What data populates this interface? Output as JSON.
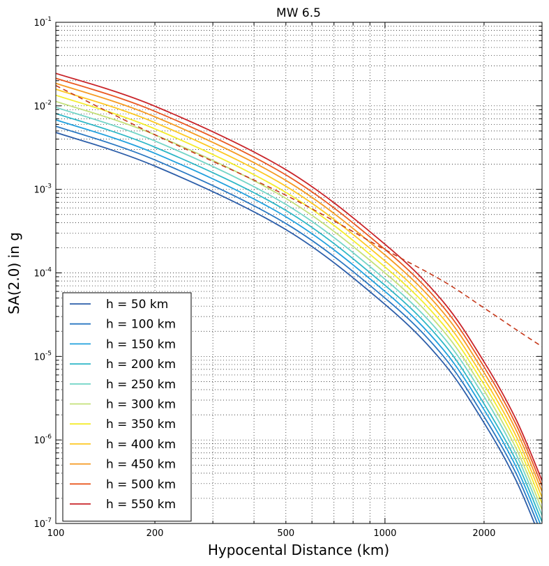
{
  "chart_data": {
    "type": "line",
    "title": "MW 6.5",
    "xlabel": "Hypocental Distance (km)",
    "ylabel": "SA(2.0) in g",
    "xscale": "log",
    "yscale": "log",
    "xlim": [
      100,
      3000
    ],
    "ylim": [
      1e-07,
      0.1
    ],
    "grid": true,
    "legend_position": "lower-left",
    "x_tick_labels": [
      {
        "value": 100,
        "label": "100"
      },
      {
        "value": 200,
        "label": "200"
      },
      {
        "value": 500,
        "label": "500"
      },
      {
        "value": 1000,
        "label": "1000"
      },
      {
        "value": 2000,
        "label": "2000"
      }
    ],
    "y_tick_labels": [
      {
        "value": 1e-07,
        "base": "10",
        "exp": "-7"
      },
      {
        "value": 1e-06,
        "base": "10",
        "exp": "-6"
      },
      {
        "value": 1e-05,
        "base": "10",
        "exp": "-5"
      },
      {
        "value": 0.0001,
        "base": "10",
        "exp": "-4"
      },
      {
        "value": 0.001,
        "base": "10",
        "exp": "-3"
      },
      {
        "value": 0.01,
        "base": "10",
        "exp": "-2"
      },
      {
        "value": 0.1,
        "base": "10",
        "exp": "-1"
      }
    ],
    "x": [
      100,
      200,
      500,
      1000,
      1500,
      2000,
      2500,
      3000
    ],
    "series": [
      {
        "name": "h = 50 km",
        "color": "#2c5ea9",
        "values": [
          0.0048,
          0.0019,
          0.00033,
          4.2e-05,
          8.5e-06,
          1.6e-06,
          3.3e-07,
          6e-08
        ]
      },
      {
        "name": "h = 100 km",
        "color": "#2a78c2",
        "values": [
          0.0057,
          0.00225,
          0.00039,
          5e-05,
          1.02e-05,
          1.9e-06,
          4e-07,
          7.3e-08
        ]
      },
      {
        "name": "h = 150 km",
        "color": "#22a1de",
        "values": [
          0.0068,
          0.0027,
          0.00047,
          6e-05,
          1.22e-05,
          2.3e-06,
          4.8e-07,
          8.8e-08
        ]
      },
      {
        "name": "h = 200 km",
        "color": "#2eb7c7",
        "values": [
          0.0081,
          0.0032,
          0.00056,
          7.1e-05,
          1.46e-05,
          2.7e-06,
          5.7e-07,
          1.05e-07
        ]
      },
      {
        "name": "h = 250 km",
        "color": "#74d5c7",
        "values": [
          0.0096,
          0.0038,
          0.00066,
          8.4e-05,
          1.73e-05,
          3.3e-06,
          6.8e-07,
          1.25e-07
        ]
      },
      {
        "name": "h = 300 km",
        "color": "#c4e07a",
        "values": [
          0.0113,
          0.0045,
          0.00078,
          0.0001,
          2.05e-05,
          3.9e-06,
          8e-07,
          1.47e-07
        ]
      },
      {
        "name": "h = 350 km",
        "color": "#f4ec2e",
        "values": [
          0.0134,
          0.0053,
          0.00092,
          0.000118,
          2.43e-05,
          4.6e-06,
          9.5e-07,
          1.74e-07
        ]
      },
      {
        "name": "h = 400 km",
        "color": "#fec824",
        "values": [
          0.0158,
          0.0063,
          0.00109,
          0.000139,
          2.87e-05,
          5.4e-06,
          1.12e-06,
          2.06e-07
        ]
      },
      {
        "name": "h = 450 km",
        "color": "#f69a22",
        "values": [
          0.0186,
          0.0074,
          0.00128,
          0.000164,
          3.39e-05,
          6.4e-06,
          1.32e-06,
          2.43e-07
        ]
      },
      {
        "name": "h = 500 km",
        "color": "#ea5a22",
        "values": [
          0.0214,
          0.0086,
          0.00149,
          0.000191,
          3.95e-05,
          7.5e-06,
          1.54e-06,
          2.83e-07
        ]
      },
      {
        "name": "h = 550 km",
        "color": "#c9252a",
        "values": [
          0.0245,
          0.0099,
          0.00172,
          0.00022,
          4.55e-05,
          8.6e-06,
          1.77e-06,
          3.26e-07
        ]
      }
    ],
    "reference": {
      "style": "dashed",
      "color": "#c6391b",
      "x": [
        100,
        200,
        500,
        1000,
        1500,
        2000,
        2500,
        3000
      ],
      "values": [
        0.0175,
        0.0045,
        0.00085,
        0.00019,
        8e-05,
        3.8e-05,
        2.1e-05,
        1.31e-05
      ]
    }
  }
}
